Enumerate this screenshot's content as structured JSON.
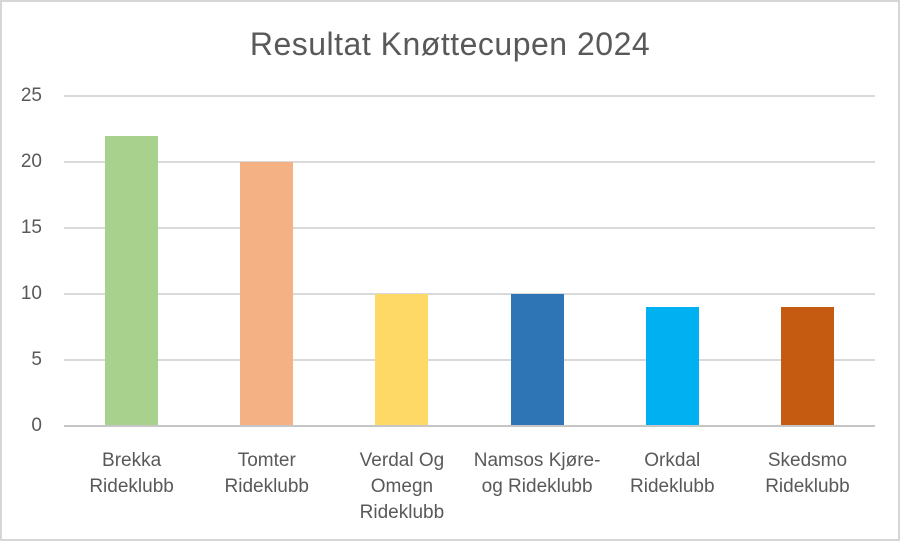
{
  "chart_data": {
    "type": "bar",
    "title": "Resultat Knøttecupen 2024",
    "categories": [
      "Brekka Rideklubb",
      "Tomter Rideklubb",
      "Verdal Og Omegn Rideklubb",
      "Namsos Kjøre- og Rideklubb",
      "Orkdal Rideklubb",
      "Skedsmo Rideklubb"
    ],
    "category_label_lines": [
      [
        "Brekka",
        "Rideklubb"
      ],
      [
        "Tomter",
        "Rideklubb"
      ],
      [
        "Verdal Og",
        "Omegn",
        "Rideklubb"
      ],
      [
        "Namsos Kjøre-",
        "og Rideklubb"
      ],
      [
        "Orkdal",
        "Rideklubb"
      ],
      [
        "Skedsmo",
        "Rideklubb"
      ]
    ],
    "values": [
      22,
      20,
      10,
      10,
      9,
      9
    ],
    "bar_colors": [
      "#A9D18E",
      "#F4B183",
      "#FFD966",
      "#2E75B6",
      "#00B0F0",
      "#C55A11"
    ],
    "xlabel": "",
    "ylabel": "",
    "ylim": [
      0,
      25
    ],
    "yticks": [
      0,
      5,
      10,
      15,
      20,
      25
    ],
    "grid": true,
    "legend": false,
    "colors": {
      "title_text": "#595959",
      "axis_text": "#595959",
      "gridline": "#D9D9D9",
      "axis_line": "#C6C6C6",
      "background": "#FFFFFF",
      "frame_border": "#D6D6D6"
    }
  }
}
